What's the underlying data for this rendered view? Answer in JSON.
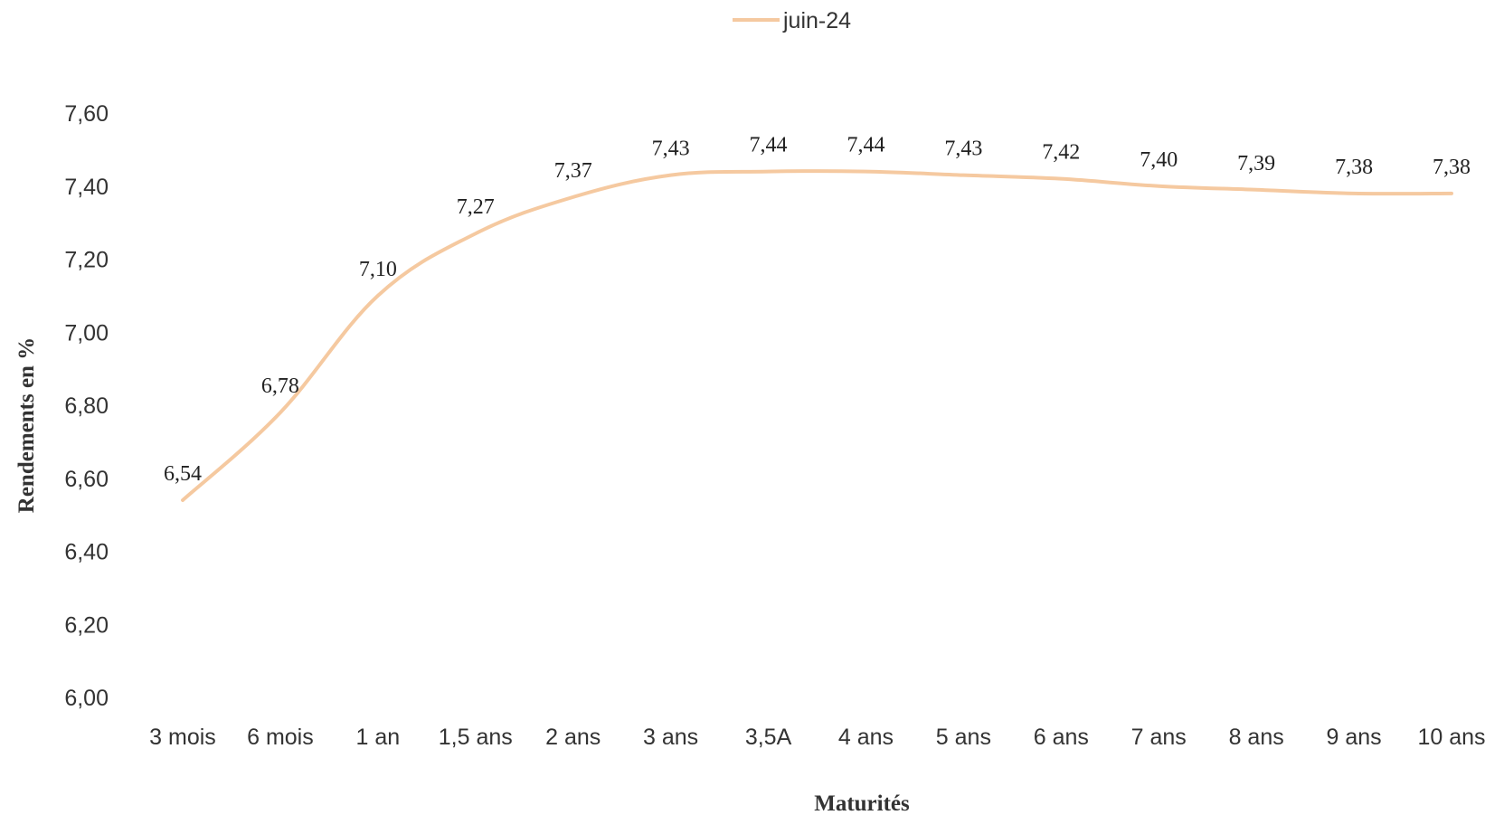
{
  "chart_data": {
    "type": "line",
    "title": "",
    "xlabel": "Maturités",
    "ylabel": "Rendements en %",
    "categories": [
      "3 mois",
      "6 mois",
      "1 an",
      "1,5 ans",
      "2 ans",
      "3 ans",
      "3,5A",
      "4 ans",
      "5 ans",
      "6 ans",
      "7 ans",
      "8 ans",
      "9 ans",
      "10 ans"
    ],
    "series": [
      {
        "name": "juin-24",
        "color": "#f5c9a0",
        "values": [
          6.54,
          6.78,
          7.1,
          7.27,
          7.37,
          7.43,
          7.44,
          7.44,
          7.43,
          7.42,
          7.4,
          7.39,
          7.38,
          7.38
        ],
        "labels": [
          "6,54",
          "6,78",
          "7,10",
          "7,27",
          "7,37",
          "7,43",
          "7,44",
          "7,44",
          "7,43",
          "7,42",
          "7,40",
          "7,39",
          "7,38",
          "7,38"
        ]
      }
    ],
    "ylim": [
      6.0,
      7.6
    ],
    "yticks": [
      "6,00",
      "6,20",
      "6,40",
      "6,60",
      "6,80",
      "7,00",
      "7,20",
      "7,40",
      "7,60"
    ],
    "grid": false,
    "legend_position": "top-center"
  }
}
